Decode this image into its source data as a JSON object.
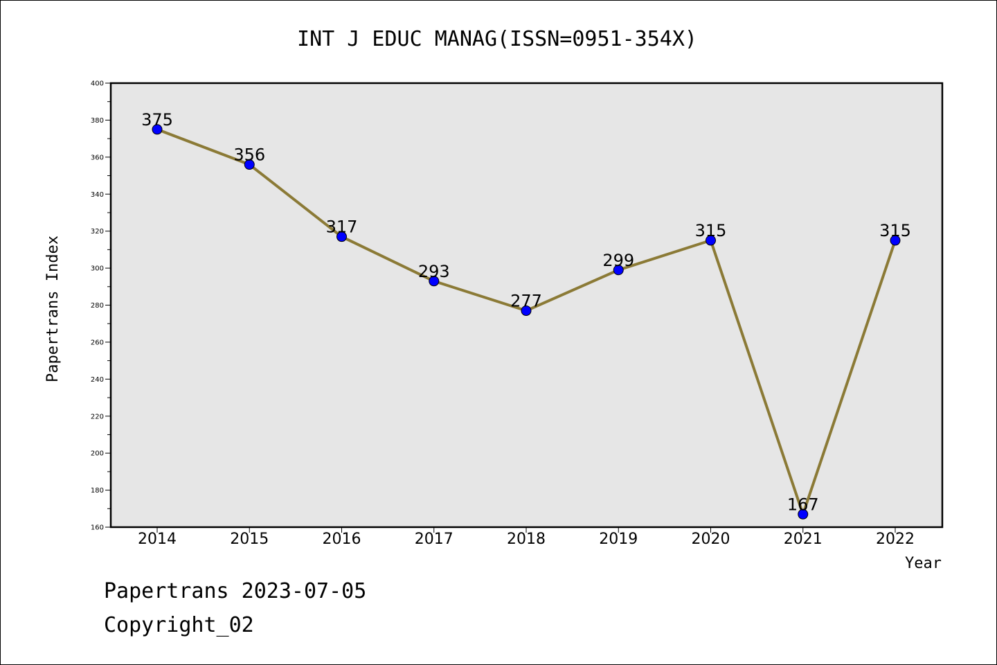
{
  "chart_data": {
    "type": "line",
    "title": "INT J EDUC MANAG(ISSN=0951-354X)",
    "xlabel": "Year",
    "ylabel": "Papertrans Index",
    "categories": [
      "2014",
      "2015",
      "2016",
      "2017",
      "2018",
      "2019",
      "2020",
      "2021",
      "2022"
    ],
    "series": [
      {
        "values": [
          375,
          356,
          317,
          293,
          277,
          299,
          315,
          167,
          315
        ]
      }
    ],
    "ylim": [
      160,
      400
    ],
    "yticks": [
      160,
      180,
      200,
      220,
      240,
      260,
      280,
      300,
      320,
      340,
      360,
      380,
      400
    ],
    "grid": false,
    "colors": {
      "line": "#8b7a36",
      "marker": "#0000ff",
      "plot_background": "#e6e6e6"
    }
  },
  "footer": {
    "line1": "Papertrans 2023-07-05",
    "line2": "Copyright_02"
  }
}
